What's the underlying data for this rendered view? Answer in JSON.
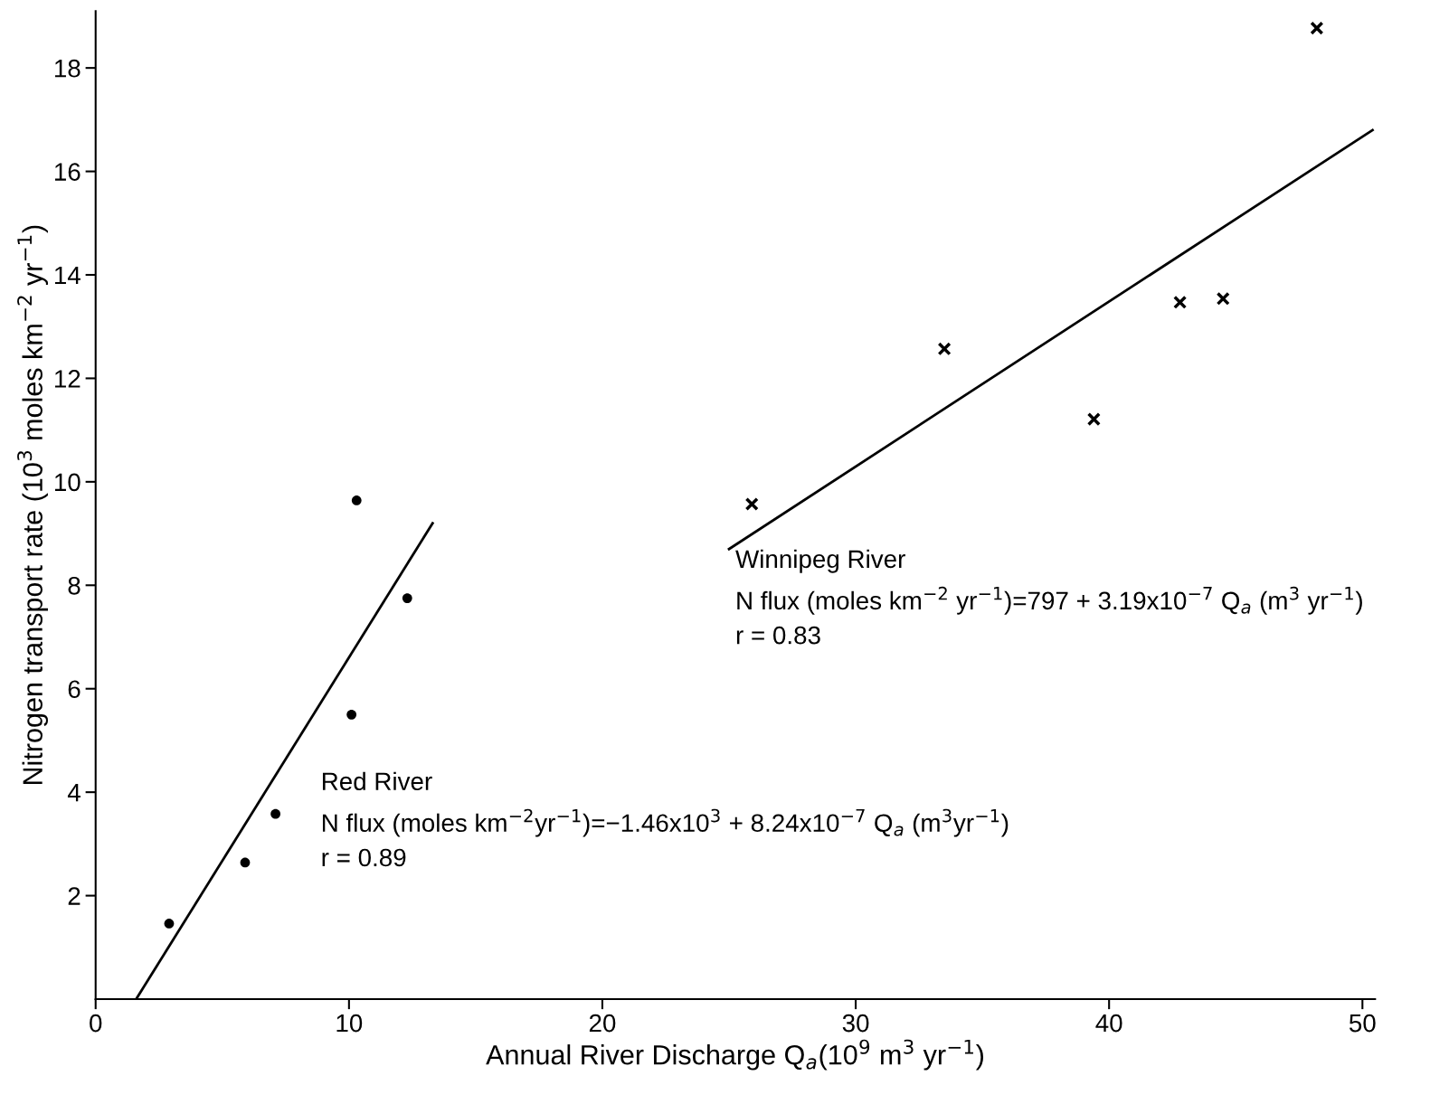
{
  "chart_data": {
    "type": "scatter",
    "xlabel": "Annual River Discharge Q$_{a}$(10$^{9}$ m$^{3}$ yr$^{−1}$)",
    "ylabel": "Nitrogen transport rate (10$^{3}$ moles km$^{−2}$ yr$^{−1}$)",
    "series": [
      {
        "marker": "circle",
        "color": "#000000",
        "x": [
          2.9,
          5.9,
          7.1,
          10.1,
          10.3,
          12.3
        ],
        "values": [
          1.46,
          2.64,
          3.58,
          5.5,
          9.64,
          7.75
        ]
      },
      {
        "marker": "cross",
        "color": "#000000",
        "x": [
          25.9,
          33.5,
          39.4,
          42.8,
          44.5,
          48.2
        ],
        "values": [
          9.57,
          12.57,
          11.21,
          13.47,
          13.54,
          18.77
        ]
      },
      {
        "type": "line",
        "color": "#000000",
        "x": [
          1.6,
          13.3
        ],
        "values": [
          0,
          9.2
        ]
      },
      {
        "type": "line",
        "color": "#000000",
        "x": [
          25.0,
          50.4
        ],
        "values": [
          8.7,
          16.8
        ]
      }
    ],
    "annotations": [
      "Red River\nN flux (moles km$^{−2}$yr$^{−1}$)=−1.46x10$^{3}$ + 8.24x10$^{−7}$ Q$_{a}$ (m$^{3}$yr$^{−1}$)\nr = 0.89",
      "Winnipeg River\nN flux (moles km$^{−2}$ yr$^{−1}$)=797 + 3.19x10$^{−7}$ Q$_{a}$ (m$^{3}$ yr$^{−1}$)\nr = 0.83"
    ],
    "xlim": [
      0,
      50.5
    ],
    "ylim": [
      0,
      19.1
    ],
    "xticks": [
      0,
      10,
      20,
      30,
      40,
      50
    ],
    "yticks": [
      2,
      4,
      6,
      8,
      10,
      12,
      14,
      16,
      18
    ],
    "grid": false,
    "legend": false
  }
}
